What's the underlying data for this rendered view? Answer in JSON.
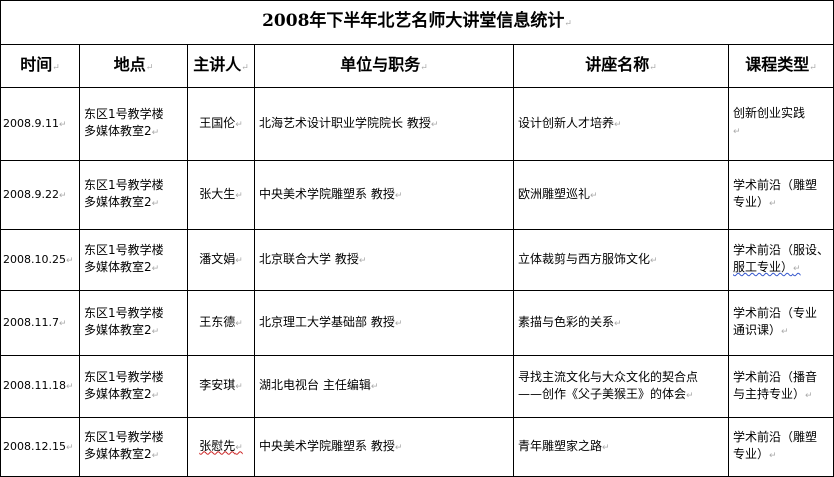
{
  "title": "2008年下半年北艺名师大讲堂信息统计",
  "headers": [
    "时间",
    "地点",
    "主讲人",
    "单位与职务",
    "讲座名称",
    "课程类型"
  ],
  "rows": [
    {
      "date": "2008.9.11",
      "place_line1": "东区1号教学楼",
      "place_line2": "多媒体教室2",
      "speaker": "王国伦",
      "affiliation": "北海艺术设计职业学院院长  教授",
      "lecture": "设计创新人才培养",
      "lecture_line2": "",
      "type_line1": "创新创业实践",
      "type_line2": ""
    },
    {
      "date": "2008.9.22",
      "place_line1": "东区1号教学楼",
      "place_line2": "多媒体教室2",
      "speaker": "张大生",
      "affiliation": "中央美术学院雕塑系 教授",
      "lecture": "欧洲雕塑巡礼",
      "lecture_line2": "",
      "type_line1": "学术前沿（雕塑",
      "type_line2": "专业）"
    },
    {
      "date": "2008.10.25",
      "place_line1": "东区1号教学楼",
      "place_line2": "多媒体教室2",
      "speaker": "潘文娟",
      "affiliation": "北京联合大学 教授",
      "lecture": "立体裁剪与西方服饰文化",
      "lecture_line2": "",
      "type_line1": "学术前沿（服设、",
      "type_line2": "服工专业）"
    },
    {
      "date": "2008.11.7",
      "place_line1": "东区1号教学楼",
      "place_line2": "多媒体教室2",
      "speaker": "王东德",
      "affiliation": "北京理工大学基础部 教授",
      "lecture": "素描与色彩的关系",
      "lecture_line2": "",
      "type_line1": "学术前沿（专业",
      "type_line2": "通识课）"
    },
    {
      "date": "2008.11.18",
      "place_line1": "东区1号教学楼",
      "place_line2": "多媒体教室2",
      "speaker": "李安琪",
      "affiliation": "湖北电视台 主任编辑",
      "lecture": "寻找主流文化与大众文化的契合点",
      "lecture_line2": "——创作《父子美猴王》的体会",
      "type_line1": "学术前沿（播音",
      "type_line2": "与主持专业）"
    },
    {
      "date": "2008.12.15",
      "place_line1": "东区1号教学楼",
      "place_line2": "多媒体教室2",
      "speaker": "张慰先",
      "affiliation": "中央美术学院雕塑系 教授",
      "lecture": "青年雕塑家之路",
      "lecture_line2": "",
      "type_line1": "学术前沿（雕塑",
      "type_line2": "专业）"
    }
  ]
}
